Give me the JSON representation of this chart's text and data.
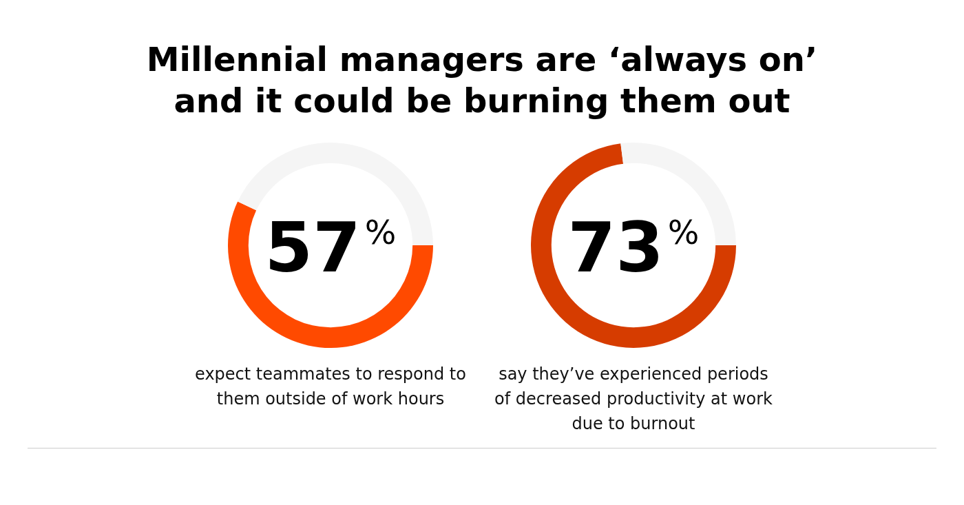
{
  "chart_data": [
    {
      "type": "donut",
      "title": "Millennial managers are ‘always on’ and it could be burning them out",
      "categories": [
        null,
        null
      ],
      "values": [
        57,
        43
      ],
      "colors": [
        "#ff4a00",
        "#f5f5f5"
      ],
      "value_labels": [
        "57%",
        null
      ],
      "annotations": [
        "expect  teammates to respond to them outside of work hours"
      ]
    },
    {
      "type": "donut",
      "categories": [
        null,
        null
      ],
      "values": [
        73,
        27
      ],
      "colors": [
        "#d63c00",
        "#f5f5f5"
      ],
      "value_labels": [
        "73%",
        null
      ],
      "annotations": [
        "say they’ve experienced periods of decreased productivity at work due to burnout"
      ]
    }
  ]
}
